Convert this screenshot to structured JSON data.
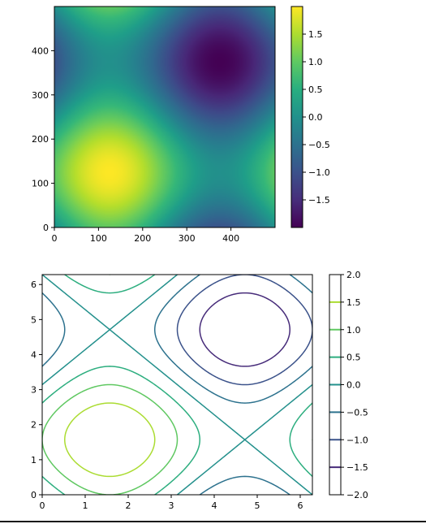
{
  "chart_data": [
    {
      "type": "heatmap",
      "title": "",
      "xlabel": "",
      "ylabel": "",
      "function": "sin(x) + sin(y), x,y in [0, 2*pi] sampled on a 500x500 grid",
      "grid_size": 500,
      "xlim": [
        0,
        500
      ],
      "ylim": [
        0,
        500
      ],
      "xticks": [
        0,
        100,
        200,
        300,
        400
      ],
      "yticks": [
        0,
        100,
        200,
        300,
        400
      ],
      "colormap": "viridis",
      "colorbar": {
        "range": [
          -2,
          2
        ],
        "ticks": [
          1.5,
          1.0,
          0.5,
          0.0,
          -0.5,
          -1.0,
          -1.5
        ],
        "tick_labels": [
          "1.5",
          "1.0",
          "0.5",
          "0.0",
          "−0.5",
          "−1.0",
          "−1.5"
        ]
      },
      "grid": false
    },
    {
      "type": "contour",
      "title": "",
      "xlabel": "",
      "ylabel": "",
      "function": "sin(x) + sin(y)",
      "xlim": [
        0,
        6.2832
      ],
      "ylim": [
        0,
        6.2832
      ],
      "xticks": [
        0,
        1,
        2,
        3,
        4,
        5,
        6
      ],
      "yticks": [
        0,
        1,
        2,
        3,
        4,
        5,
        6
      ],
      "levels": [
        -1.5,
        -1.0,
        -0.5,
        0.0,
        0.5,
        1.0,
        1.5
      ],
      "colormap": "viridis",
      "colorbar": {
        "range": [
          -2,
          2
        ],
        "ticks": [
          2.0,
          1.5,
          1.0,
          0.5,
          0.0,
          -0.5,
          -1.0,
          -1.5,
          -2.0
        ],
        "tick_labels": [
          "2.0",
          "1.5",
          "1.0",
          "0.5",
          "0.0",
          "−0.5",
          "−1.0",
          "−1.5",
          "−2.0"
        ]
      },
      "grid": false
    }
  ]
}
